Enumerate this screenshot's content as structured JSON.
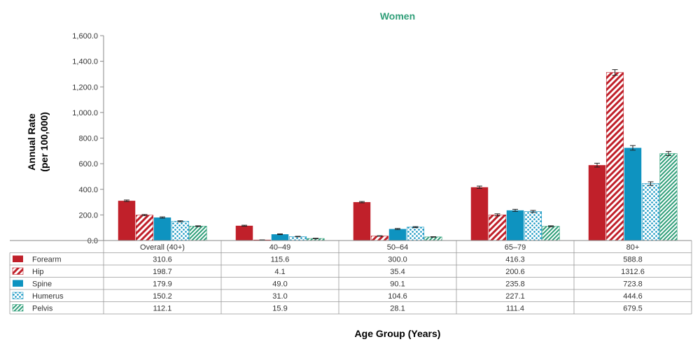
{
  "chart_data": {
    "type": "bar",
    "title": "Women",
    "xlabel": "Age Group (Years)",
    "ylabel_line1": "Annual Rate",
    "ylabel_line2": "(per 100,000)",
    "ylim": [
      0,
      1600
    ],
    "yticks": [
      "0.0",
      "200.0",
      "400.0",
      "600.0",
      "800.0",
      "1,000.0",
      "1,200.0",
      "1,400.0",
      "1,600.0"
    ],
    "yticks_values": [
      0,
      200,
      400,
      600,
      800,
      1000,
      1200,
      1400,
      1600
    ],
    "categories": [
      "Overall (40+)",
      "40–49",
      "50–64",
      "65–79",
      "80+"
    ],
    "series": [
      {
        "name": "Forearm",
        "values": [
          310.6,
          115.6,
          300.0,
          416.3,
          588.8
        ],
        "labels": [
          "310.6",
          "115.6",
          "300.0",
          "416.3",
          "588.8"
        ],
        "error": [
          6,
          4,
          5,
          9,
          15
        ],
        "color": "#c0202a",
        "pattern": "solid"
      },
      {
        "name": "Hip",
        "values": [
          198.7,
          4.1,
          35.4,
          200.6,
          1312.6
        ],
        "labels": [
          "198.7",
          "4.1",
          "35.4",
          "200.6",
          "1312.6"
        ],
        "error": [
          5,
          1,
          2,
          8,
          22
        ],
        "color": "#c0202a",
        "pattern": "diagonal-stripes"
      },
      {
        "name": "Spine",
        "values": [
          179.9,
          49.0,
          90.1,
          235.8,
          723.8
        ],
        "labels": [
          "179.9",
          "49.0",
          "90.1",
          "235.8",
          "723.8"
        ],
        "error": [
          5,
          3,
          4,
          8,
          18
        ],
        "color": "#0e93c0",
        "pattern": "solid"
      },
      {
        "name": "Humerus",
        "values": [
          150.2,
          31.0,
          104.6,
          227.1,
          444.6
        ],
        "labels": [
          "150.2",
          "31.0",
          "104.6",
          "227.1",
          "444.6"
        ],
        "error": [
          4,
          2,
          4,
          8,
          14
        ],
        "color": "#0e93c0",
        "pattern": "dots"
      },
      {
        "name": "Pelvis",
        "values": [
          112.1,
          15.9,
          28.1,
          111.4,
          679.5
        ],
        "labels": [
          "112.1",
          "15.9",
          "28.1",
          "111.4",
          "679.5"
        ],
        "error": [
          3,
          2,
          2,
          4,
          16
        ],
        "color": "#2f9e78",
        "pattern": "diagonal-stripes"
      }
    ],
    "title_color": "#2f9e78",
    "grid": false,
    "legend_placement": "data-table-left"
  }
}
